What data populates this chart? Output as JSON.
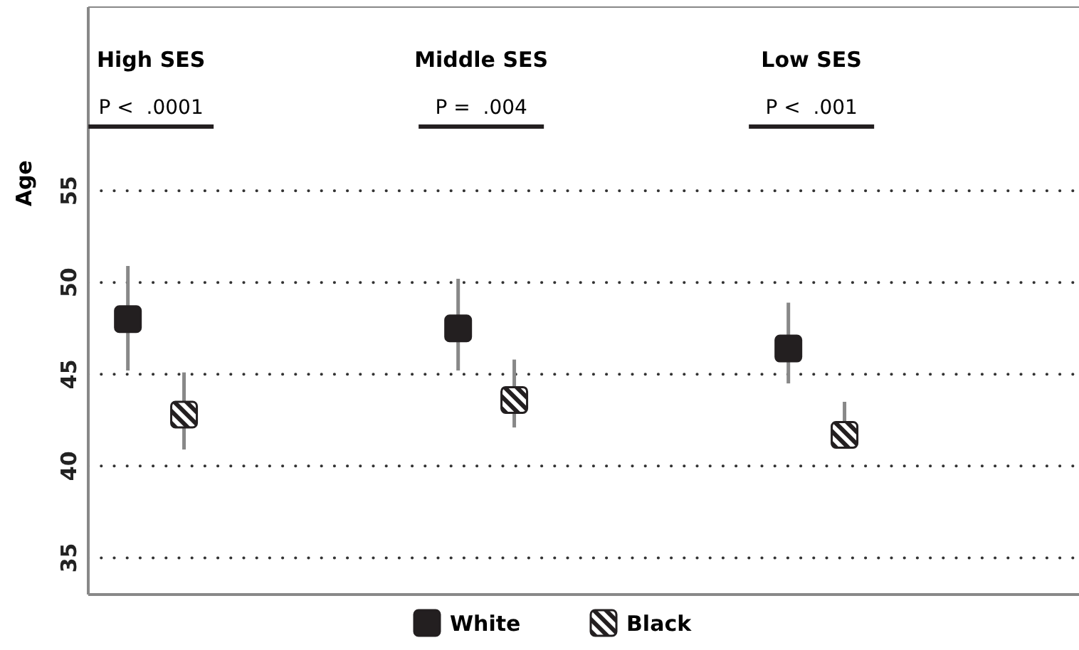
{
  "chart_data": {
    "type": "scatter",
    "ylabel": "Age",
    "categories": [
      "High SES",
      "Middle SES",
      "Low SES"
    ],
    "series": [
      {
        "name": "White",
        "color": "#231f20",
        "values": [
          48.0,
          47.5,
          46.4
        ],
        "errors": [
          [
            45.2,
            50.9
          ],
          [
            45.2,
            50.2
          ],
          [
            44.5,
            48.9
          ]
        ]
      },
      {
        "name": "Black",
        "color": "#231f20",
        "values": [
          42.8,
          43.6,
          41.7
        ],
        "errors": [
          [
            40.9,
            45.1
          ],
          [
            42.1,
            45.8
          ],
          [
            41.0,
            43.5
          ]
        ]
      }
    ],
    "annotations": [
      "P <  .0001",
      "P =  .004",
      "P <  .001"
    ],
    "ylim": [
      33,
      65
    ],
    "yticks": [
      35,
      40,
      45,
      50,
      55
    ],
    "grid": "y",
    "legend": "bottom",
    "marker": "square"
  }
}
